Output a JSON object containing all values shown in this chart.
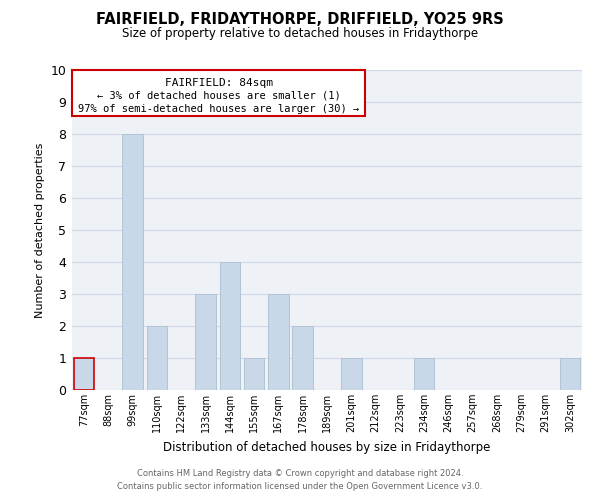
{
  "title": "FAIRFIELD, FRIDAYTHORPE, DRIFFIELD, YO25 9RS",
  "subtitle": "Size of property relative to detached houses in Fridaythorpe",
  "xlabel": "Distribution of detached houses by size in Fridaythorpe",
  "ylabel": "Number of detached properties",
  "categories": [
    "77sqm",
    "88sqm",
    "99sqm",
    "110sqm",
    "122sqm",
    "133sqm",
    "144sqm",
    "155sqm",
    "167sqm",
    "178sqm",
    "189sqm",
    "201sqm",
    "212sqm",
    "223sqm",
    "234sqm",
    "246sqm",
    "257sqm",
    "268sqm",
    "279sqm",
    "291sqm",
    "302sqm"
  ],
  "values": [
    1,
    0,
    8,
    2,
    0,
    3,
    4,
    1,
    3,
    2,
    0,
    1,
    0,
    0,
    1,
    0,
    0,
    0,
    0,
    0,
    1
  ],
  "bar_color": "#c8d8e8",
  "highlight_bar_index": 0,
  "highlight_bar_edge_color": "#cc0000",
  "normal_bar_edge_color": "#b0c4d4",
  "ylim": [
    0,
    10
  ],
  "yticks": [
    0,
    1,
    2,
    3,
    4,
    5,
    6,
    7,
    8,
    9,
    10
  ],
  "annotation_title": "FAIRFIELD: 84sqm",
  "annotation_line1": "← 3% of detached houses are smaller (1)",
  "annotation_line2": "97% of semi-detached houses are larger (30) →",
  "annotation_box_color": "#ffffff",
  "annotation_box_edge_color": "#cc0000",
  "footer_line1": "Contains HM Land Registry data © Crown copyright and database right 2024.",
  "footer_line2": "Contains public sector information licensed under the Open Government Licence v3.0.",
  "grid_color": "#d0d8e8",
  "background_color": "#eef2f7"
}
